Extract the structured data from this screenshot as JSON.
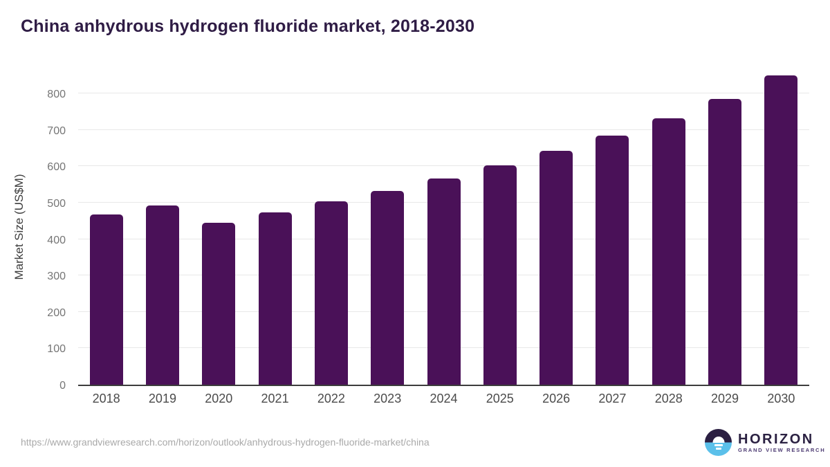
{
  "header": {
    "title": "China anhydrous hydrogen fluoride market, 2018-2030"
  },
  "chart_data": {
    "type": "bar",
    "title": "China anhydrous hydrogen fluoride market, 2018-2030",
    "categories": [
      "2018",
      "2019",
      "2020",
      "2021",
      "2022",
      "2023",
      "2024",
      "2025",
      "2026",
      "2027",
      "2028",
      "2029",
      "2030"
    ],
    "values": [
      468,
      493,
      444,
      474,
      503,
      532,
      566,
      602,
      642,
      684,
      732,
      784,
      850
    ],
    "xlabel": "",
    "ylabel": "Market Size (US$M)",
    "yticks": [
      0,
      100,
      200,
      300,
      400,
      500,
      600,
      700,
      800
    ],
    "ylim": [
      0,
      870
    ],
    "grid": true,
    "legend": false,
    "bar_color": "#4a1158"
  },
  "footer": {
    "source_url": "https://www.grandviewresearch.com/horizon/outlook/anhydrous-hydrogen-fluoride-market/china",
    "logo": {
      "name": "HORIZON",
      "subtitle": "GRAND VIEW RESEARCH"
    }
  },
  "colors": {
    "title": "#2f1c45",
    "bar": "#4a1158",
    "gridline": "#e8e8e8",
    "axis_line": "#3c3c3c",
    "tick_label": "#757575",
    "x_label": "#4b4b4b",
    "url_text": "#a9a9a9",
    "logo_dark": "#2b1f42",
    "logo_blue": "#5bc0ea"
  }
}
